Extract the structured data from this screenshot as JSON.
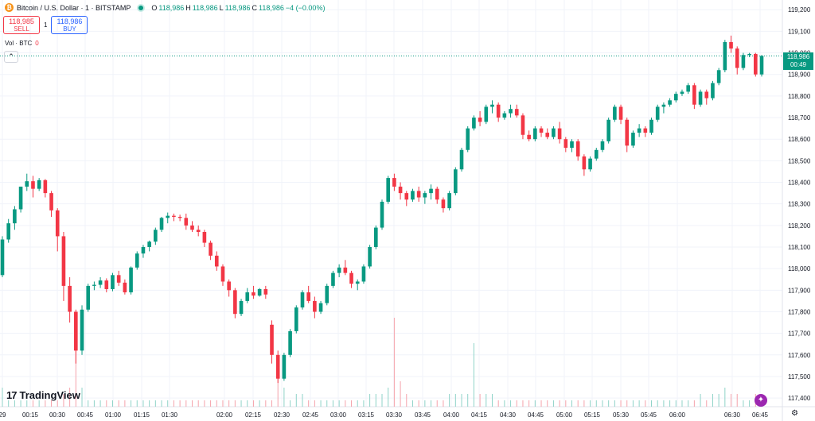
{
  "symbol": {
    "title": "Bitcoin / U.S. Dollar · 1 · BITSTAMP",
    "coin_icon": "bitcoin-icon",
    "ohlc": {
      "o_label": "O",
      "o": "118,986",
      "h_label": "H",
      "h": "118,986",
      "l_label": "L",
      "l": "118,986",
      "c_label": "C",
      "c": "118,986",
      "change": "−4 (−0.00%)"
    }
  },
  "trade": {
    "sell_price": "118,985",
    "sell_label": "SELL",
    "spread": "1",
    "buy_price": "118,986",
    "buy_label": "BUY"
  },
  "volume": {
    "label": "Vol · BTC",
    "value": "0"
  },
  "price_label": {
    "price": "118,986",
    "countdown": "00:49"
  },
  "brand": {
    "name": "TradingView",
    "mark": "17"
  },
  "colors": {
    "up": "#089981",
    "down": "#f23645",
    "grid": "#f0f3fa",
    "axis_text": "#131722"
  },
  "chart_data": {
    "type": "candlestick",
    "x_tick_labels": [
      "29",
      "00:15",
      "00:30",
      "00:45",
      "01:00",
      "01:15",
      "01:30",
      "02:00",
      "02:15",
      "02:30",
      "02:45",
      "03:00",
      "03:15",
      "03:30",
      "03:45",
      "04:00",
      "04:15",
      "04:30",
      "04:45",
      "05:00",
      "05:15",
      "05:30",
      "05:45",
      "06:00",
      "06:30",
      "06:45"
    ],
    "y_tick_labels": [
      "119,200",
      "119,100",
      "119,000",
      "118,900",
      "118,800",
      "118,700",
      "118,600",
      "118,500",
      "118,400",
      "118,300",
      "118,200",
      "118,100",
      "118,000",
      "117,900",
      "117,800",
      "117,700",
      "117,600",
      "117,500",
      "117,400"
    ],
    "y_ticks": [
      119200,
      119100,
      119000,
      118900,
      118800,
      118700,
      118600,
      118500,
      118400,
      118300,
      118200,
      118100,
      118000,
      117900,
      117800,
      117700,
      117600,
      117500,
      117400
    ],
    "ylim": [
      117360,
      119245
    ],
    "current_price": 118986,
    "bars": [
      [
        117970,
        118150,
        117960,
        118135,
        3
      ],
      [
        118135,
        118230,
        118120,
        118210,
        1
      ],
      [
        118210,
        118290,
        118180,
        118275,
        1
      ],
      [
        118275,
        118380,
        118260,
        118380,
        1
      ],
      [
        118380,
        118440,
        118360,
        118405,
        1
      ],
      [
        118405,
        118430,
        118330,
        118370,
        1
      ],
      [
        118370,
        118420,
        118360,
        118410,
        1
      ],
      [
        118410,
        118415,
        118330,
        118350,
        1
      ],
      [
        118350,
        118360,
        118240,
        118270,
        1
      ],
      [
        118270,
        118280,
        118080,
        118150,
        1
      ],
      [
        118150,
        118170,
        117850,
        117920,
        2
      ],
      [
        117920,
        117960,
        117750,
        117800,
        3
      ],
      [
        117800,
        117810,
        117560,
        117620,
        10
      ],
      [
        117620,
        117830,
        117600,
        117810,
        3
      ],
      [
        117810,
        117930,
        117800,
        117920,
        1
      ],
      [
        117920,
        117940,
        117900,
        117925,
        1
      ],
      [
        117925,
        117960,
        117910,
        117945,
        1
      ],
      [
        117945,
        117955,
        117890,
        117905,
        1
      ],
      [
        117905,
        117980,
        117895,
        117970,
        1
      ],
      [
        117970,
        117990,
        117920,
        117935,
        1
      ],
      [
        117935,
        117950,
        117880,
        117890,
        1
      ],
      [
        117890,
        118010,
        117880,
        118005,
        1
      ],
      [
        118005,
        118080,
        117995,
        118070,
        1
      ],
      [
        118070,
        118110,
        118050,
        118100,
        1
      ],
      [
        118100,
        118130,
        118080,
        118125,
        1
      ],
      [
        118125,
        118190,
        118110,
        118180,
        1
      ],
      [
        118180,
        118240,
        118170,
        118235,
        1
      ],
      [
        118235,
        118260,
        118210,
        118245,
        1
      ],
      [
        118245,
        118255,
        118220,
        118240,
        1
      ],
      [
        118240,
        118250,
        118220,
        118235,
        1
      ],
      [
        118235,
        118255,
        118180,
        118200,
        1
      ],
      [
        118200,
        118220,
        118170,
        118180,
        1
      ],
      [
        118180,
        118200,
        118150,
        118170,
        1
      ],
      [
        118170,
        118180,
        118100,
        118120,
        1
      ],
      [
        118120,
        118130,
        118040,
        118060,
        1
      ],
      [
        118060,
        118080,
        117990,
        118010,
        1
      ],
      [
        118010,
        118020,
        117920,
        117940,
        1
      ],
      [
        117940,
        117950,
        117870,
        117900,
        1
      ],
      [
        117900,
        117910,
        117770,
        117790,
        1
      ],
      [
        117790,
        117860,
        117780,
        117850,
        1
      ],
      [
        117850,
        117910,
        117840,
        117890,
        1
      ],
      [
        117890,
        117920,
        117860,
        117875,
        1
      ],
      [
        117875,
        117910,
        117870,
        117905,
        1
      ],
      [
        117905,
        117920,
        117860,
        117880,
        1
      ],
      [
        117740,
        117760,
        117560,
        117600,
        1
      ],
      [
        117600,
        117620,
        117470,
        117490,
        5
      ],
      [
        117490,
        117610,
        117480,
        117600,
        3
      ],
      [
        117600,
        117720,
        117590,
        117710,
        1
      ],
      [
        117710,
        117830,
        117700,
        117820,
        2
      ],
      [
        117820,
        117900,
        117810,
        117890,
        2
      ],
      [
        117890,
        117920,
        117840,
        117850,
        1
      ],
      [
        117850,
        117870,
        117770,
        117800,
        1
      ],
      [
        117800,
        117850,
        117790,
        117840,
        1
      ],
      [
        117840,
        117930,
        117830,
        117920,
        1
      ],
      [
        117920,
        117990,
        117910,
        117980,
        1
      ],
      [
        117980,
        118020,
        117960,
        118005,
        1
      ],
      [
        118005,
        118040,
        117970,
        117980,
        1
      ],
      [
        117980,
        117990,
        117910,
        117930,
        1
      ],
      [
        117930,
        117950,
        117900,
        117940,
        1
      ],
      [
        117940,
        118020,
        117930,
        118010,
        1
      ],
      [
        118010,
        118110,
        118000,
        118100,
        2
      ],
      [
        118100,
        118200,
        118090,
        118190,
        2
      ],
      [
        118190,
        118320,
        118180,
        118310,
        2
      ],
      [
        118310,
        118430,
        118300,
        118420,
        3
      ],
      [
        118420,
        118440,
        118360,
        118380,
        14
      ],
      [
        118380,
        118400,
        118320,
        118350,
        4
      ],
      [
        118350,
        118360,
        118290,
        118320,
        2
      ],
      [
        118320,
        118370,
        118310,
        118360,
        1
      ],
      [
        118360,
        118380,
        118310,
        118330,
        1
      ],
      [
        118330,
        118360,
        118300,
        118350,
        1
      ],
      [
        118350,
        118390,
        118320,
        118370,
        1
      ],
      [
        118370,
        118380,
        118300,
        118320,
        1
      ],
      [
        118320,
        118330,
        118260,
        118280,
        1
      ],
      [
        118280,
        118360,
        118270,
        118350,
        2
      ],
      [
        118350,
        118470,
        118340,
        118460,
        2
      ],
      [
        118460,
        118560,
        118450,
        118550,
        2
      ],
      [
        118550,
        118660,
        118540,
        118650,
        2
      ],
      [
        118650,
        118710,
        118640,
        118700,
        10
      ],
      [
        118700,
        118730,
        118660,
        118680,
        2
      ],
      [
        118680,
        118760,
        118670,
        118750,
        2
      ],
      [
        118750,
        118780,
        118720,
        118760,
        2
      ],
      [
        118760,
        118770,
        118680,
        118700,
        1
      ],
      [
        118700,
        118730,
        118690,
        118720,
        1
      ],
      [
        118720,
        118760,
        118700,
        118740,
        1
      ],
      [
        118740,
        118760,
        118700,
        118710,
        1
      ],
      [
        118710,
        118720,
        118600,
        118620,
        1
      ],
      [
        118620,
        118640,
        118590,
        118600,
        1
      ],
      [
        118600,
        118660,
        118590,
        118650,
        1
      ],
      [
        118650,
        118660,
        118610,
        118630,
        1
      ],
      [
        118630,
        118650,
        118600,
        118610,
        1
      ],
      [
        118610,
        118660,
        118600,
        118650,
        1
      ],
      [
        118650,
        118680,
        118580,
        118600,
        1
      ],
      [
        118600,
        118610,
        118540,
        118560,
        1
      ],
      [
        118560,
        118600,
        118540,
        118590,
        1
      ],
      [
        118590,
        118600,
        118500,
        118520,
        1
      ],
      [
        118520,
        118530,
        118430,
        118460,
        1
      ],
      [
        118460,
        118520,
        118450,
        118510,
        1
      ],
      [
        118510,
        118560,
        118500,
        118550,
        1
      ],
      [
        118550,
        118600,
        118540,
        118590,
        1
      ],
      [
        118590,
        118700,
        118580,
        118690,
        1
      ],
      [
        118690,
        118760,
        118680,
        118750,
        1
      ],
      [
        118750,
        118760,
        118670,
        118690,
        1
      ],
      [
        118690,
        118700,
        118540,
        118570,
        1
      ],
      [
        118570,
        118640,
        118560,
        118630,
        1
      ],
      [
        118630,
        118670,
        118610,
        118650,
        1
      ],
      [
        118650,
        118660,
        118610,
        118630,
        1
      ],
      [
        118630,
        118700,
        118620,
        118690,
        1
      ],
      [
        118690,
        118760,
        118680,
        118750,
        1
      ],
      [
        118750,
        118770,
        118720,
        118760,
        1
      ],
      [
        118760,
        118790,
        118750,
        118780,
        1
      ],
      [
        118780,
        118820,
        118770,
        118810,
        1
      ],
      [
        118810,
        118830,
        118800,
        118820,
        1
      ],
      [
        118820,
        118860,
        118810,
        118850,
        1
      ],
      [
        118850,
        118860,
        118740,
        118760,
        1
      ],
      [
        118760,
        118830,
        118750,
        118820,
        2
      ],
      [
        118820,
        118830,
        118760,
        118790,
        1
      ],
      [
        118790,
        118870,
        118780,
        118860,
        2
      ],
      [
        118860,
        118930,
        118850,
        118920,
        2
      ],
      [
        118920,
        119060,
        118910,
        119050,
        3
      ],
      [
        119050,
        119080,
        119000,
        119020,
        2
      ],
      [
        119020,
        119030,
        118900,
        118930,
        2
      ],
      [
        118930,
        119000,
        118920,
        118990,
        1
      ],
      [
        118990,
        119000,
        118980,
        118995,
        1
      ],
      [
        118995,
        119000,
        118890,
        118900,
        2
      ],
      [
        118900,
        118990,
        118890,
        118986,
        1
      ]
    ]
  }
}
